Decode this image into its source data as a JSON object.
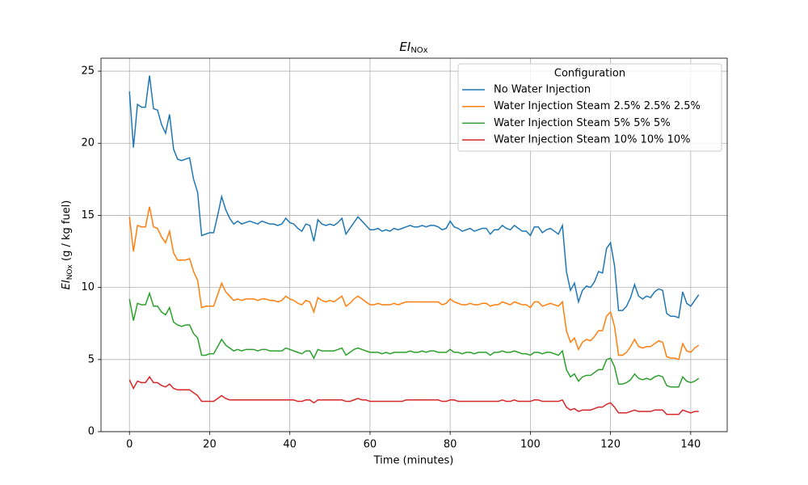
{
  "chart_data": {
    "type": "line",
    "title": {
      "main": "EI",
      "sub": "NOx"
    },
    "xlabel": "Time (minutes)",
    "ylabel": {
      "main": "EI",
      "sub": "NOx",
      "rest": " (g / kg fuel)"
    },
    "legend_title": "Configuration",
    "legend": "upper right",
    "grid": true,
    "xlim": [
      -7.1,
      149.1
    ],
    "ylim": [
      0,
      25.9
    ],
    "xticks": [
      0,
      20,
      40,
      60,
      80,
      100,
      120,
      140
    ],
    "yticks": [
      0,
      5,
      10,
      15,
      20,
      25
    ],
    "x": [
      0,
      1,
      2,
      3,
      4,
      5,
      6,
      7,
      8,
      9,
      10,
      11,
      12,
      13,
      14,
      15,
      16,
      17,
      18,
      19,
      20,
      21,
      22,
      23,
      24,
      25,
      26,
      27,
      28,
      29,
      30,
      31,
      32,
      33,
      34,
      35,
      36,
      37,
      38,
      39,
      40,
      41,
      42,
      43,
      44,
      45,
      46,
      47,
      48,
      49,
      50,
      51,
      52,
      53,
      54,
      55,
      56,
      57,
      58,
      59,
      60,
      61,
      62,
      63,
      64,
      65,
      66,
      67,
      68,
      69,
      70,
      71,
      72,
      73,
      74,
      75,
      76,
      77,
      78,
      79,
      80,
      81,
      82,
      83,
      84,
      85,
      86,
      87,
      88,
      89,
      90,
      91,
      92,
      93,
      94,
      95,
      96,
      97,
      98,
      99,
      100,
      101,
      102,
      103,
      104,
      105,
      106,
      107,
      108,
      109,
      110,
      111,
      112,
      113,
      114,
      115,
      116,
      117,
      118,
      119,
      120,
      121,
      122,
      123,
      124,
      125,
      126,
      127,
      128,
      129,
      130,
      131,
      132,
      133,
      134,
      135,
      136,
      137,
      138,
      139,
      140,
      141,
      142
    ],
    "series": [
      {
        "name": "No Water Injection",
        "color": "#1f77b4",
        "values": [
          23.6,
          19.7,
          22.7,
          22.5,
          22.5,
          24.7,
          22.4,
          22.3,
          21.3,
          20.7,
          22.0,
          19.6,
          18.9,
          18.8,
          18.9,
          19.0,
          17.5,
          16.6,
          13.6,
          13.7,
          13.8,
          13.8,
          15.0,
          16.3,
          15.4,
          14.8,
          14.4,
          14.6,
          14.4,
          14.5,
          14.6,
          14.5,
          14.4,
          14.6,
          14.5,
          14.4,
          14.4,
          14.3,
          14.4,
          14.8,
          14.5,
          14.4,
          14.1,
          13.9,
          14.4,
          14.3,
          13.2,
          14.7,
          14.4,
          14.3,
          14.4,
          14.3,
          14.5,
          14.8,
          13.7,
          14.1,
          14.5,
          14.9,
          14.6,
          14.3,
          14.0,
          14.0,
          14.1,
          13.9,
          14.0,
          13.9,
          14.1,
          14.0,
          14.1,
          14.2,
          14.3,
          14.2,
          14.2,
          14.3,
          14.2,
          14.3,
          14.3,
          14.2,
          14.0,
          14.1,
          14.6,
          14.2,
          14.1,
          13.9,
          14.0,
          14.1,
          13.9,
          14.0,
          14.1,
          14.1,
          13.7,
          14.0,
          14.0,
          14.3,
          14.1,
          14.0,
          14.3,
          14.1,
          13.9,
          13.9,
          13.6,
          14.2,
          14.2,
          13.8,
          14.0,
          14.1,
          13.9,
          13.7,
          14.3,
          11.1,
          9.8,
          10.3,
          9.0,
          9.8,
          10.1,
          10.0,
          10.4,
          11.1,
          11.0,
          12.7,
          13.1,
          11.5,
          8.4,
          8.4,
          8.7,
          9.3,
          10.2,
          9.4,
          9.2,
          9.4,
          9.3,
          9.7,
          9.9,
          9.8,
          8.2,
          8.0,
          8.0,
          7.9,
          9.7,
          8.9,
          8.7,
          9.1,
          9.5
        ]
      },
      {
        "name": "Water Injection Steam 2.5% 2.5% 2.5%",
        "color": "#ff7f0e",
        "values": [
          14.9,
          12.5,
          14.3,
          14.2,
          14.2,
          15.6,
          14.2,
          14.1,
          13.5,
          13.1,
          13.9,
          12.4,
          11.9,
          11.9,
          11.9,
          12.0,
          11.1,
          10.5,
          8.6,
          8.7,
          8.7,
          8.7,
          9.5,
          10.3,
          9.7,
          9.4,
          9.1,
          9.2,
          9.1,
          9.2,
          9.2,
          9.2,
          9.1,
          9.2,
          9.2,
          9.1,
          9.1,
          9.0,
          9.1,
          9.4,
          9.2,
          9.1,
          8.9,
          8.8,
          9.1,
          9.0,
          8.3,
          9.3,
          9.1,
          9.0,
          9.1,
          9.0,
          9.2,
          9.4,
          8.7,
          8.9,
          9.2,
          9.4,
          9.2,
          9.0,
          8.8,
          8.8,
          8.9,
          8.8,
          8.8,
          8.8,
          8.9,
          8.8,
          8.9,
          9.0,
          9.0,
          9.0,
          9.0,
          9.0,
          9.0,
          9.0,
          9.0,
          9.0,
          8.8,
          8.9,
          9.2,
          9.0,
          8.9,
          8.8,
          8.8,
          8.9,
          8.8,
          8.8,
          8.9,
          8.9,
          8.7,
          8.8,
          8.8,
          9.0,
          8.9,
          8.8,
          9.0,
          8.9,
          8.8,
          8.8,
          8.6,
          9.0,
          9.0,
          8.7,
          8.8,
          8.9,
          8.8,
          8.7,
          9.0,
          7.0,
          6.2,
          6.5,
          5.7,
          6.2,
          6.4,
          6.3,
          6.6,
          7.0,
          7.0,
          8.0,
          8.3,
          7.3,
          5.3,
          5.3,
          5.5,
          5.9,
          6.4,
          5.9,
          5.8,
          5.9,
          5.9,
          6.1,
          6.3,
          6.2,
          5.2,
          5.1,
          5.1,
          5.0,
          6.1,
          5.6,
          5.5,
          5.8,
          6.0
        ]
      },
      {
        "name": "Water Injection Steam 5% 5% 5%",
        "color": "#2ca02c",
        "values": [
          9.2,
          7.7,
          8.9,
          8.8,
          8.8,
          9.6,
          8.7,
          8.7,
          8.3,
          8.1,
          8.6,
          7.6,
          7.4,
          7.3,
          7.4,
          7.4,
          6.8,
          6.5,
          5.3,
          5.3,
          5.4,
          5.4,
          5.9,
          6.4,
          6.0,
          5.8,
          5.6,
          5.7,
          5.6,
          5.7,
          5.7,
          5.7,
          5.6,
          5.7,
          5.7,
          5.6,
          5.6,
          5.6,
          5.6,
          5.8,
          5.7,
          5.6,
          5.5,
          5.4,
          5.6,
          5.6,
          5.1,
          5.7,
          5.6,
          5.6,
          5.6,
          5.6,
          5.7,
          5.8,
          5.3,
          5.5,
          5.7,
          5.8,
          5.7,
          5.6,
          5.5,
          5.5,
          5.5,
          5.4,
          5.5,
          5.4,
          5.5,
          5.5,
          5.5,
          5.5,
          5.6,
          5.5,
          5.5,
          5.6,
          5.5,
          5.6,
          5.6,
          5.5,
          5.5,
          5.5,
          5.7,
          5.5,
          5.5,
          5.4,
          5.5,
          5.5,
          5.4,
          5.5,
          5.5,
          5.5,
          5.3,
          5.5,
          5.5,
          5.6,
          5.5,
          5.5,
          5.6,
          5.5,
          5.4,
          5.4,
          5.3,
          5.5,
          5.5,
          5.4,
          5.5,
          5.5,
          5.4,
          5.3,
          5.6,
          4.3,
          3.8,
          4.0,
          3.5,
          3.8,
          3.9,
          3.9,
          4.1,
          4.3,
          4.3,
          5.0,
          5.1,
          4.5,
          3.3,
          3.3,
          3.4,
          3.6,
          4.0,
          3.7,
          3.6,
          3.7,
          3.6,
          3.8,
          3.9,
          3.8,
          3.2,
          3.1,
          3.1,
          3.1,
          3.8,
          3.5,
          3.4,
          3.5,
          3.7
        ]
      },
      {
        "name": "Water Injection Steam 10% 10% 10%",
        "color": "#d62728",
        "values": [
          3.6,
          3.0,
          3.5,
          3.4,
          3.4,
          3.8,
          3.4,
          3.4,
          3.2,
          3.1,
          3.3,
          3.0,
          2.9,
          2.9,
          2.9,
          2.9,
          2.7,
          2.5,
          2.1,
          2.1,
          2.1,
          2.1,
          2.3,
          2.5,
          2.3,
          2.2,
          2.2,
          2.2,
          2.2,
          2.2,
          2.2,
          2.2,
          2.2,
          2.2,
          2.2,
          2.2,
          2.2,
          2.2,
          2.2,
          2.2,
          2.2,
          2.2,
          2.1,
          2.1,
          2.2,
          2.2,
          2.0,
          2.2,
          2.2,
          2.2,
          2.2,
          2.2,
          2.2,
          2.2,
          2.1,
          2.1,
          2.2,
          2.3,
          2.2,
          2.2,
          2.1,
          2.1,
          2.1,
          2.1,
          2.1,
          2.1,
          2.1,
          2.1,
          2.1,
          2.2,
          2.2,
          2.2,
          2.2,
          2.2,
          2.2,
          2.2,
          2.2,
          2.2,
          2.1,
          2.1,
          2.2,
          2.2,
          2.1,
          2.1,
          2.1,
          2.1,
          2.1,
          2.1,
          2.1,
          2.1,
          2.1,
          2.1,
          2.1,
          2.2,
          2.1,
          2.1,
          2.2,
          2.1,
          2.1,
          2.1,
          2.1,
          2.2,
          2.2,
          2.1,
          2.1,
          2.1,
          2.1,
          2.1,
          2.2,
          1.7,
          1.5,
          1.6,
          1.4,
          1.5,
          1.5,
          1.5,
          1.6,
          1.7,
          1.7,
          1.9,
          2.0,
          1.7,
          1.3,
          1.3,
          1.3,
          1.4,
          1.5,
          1.4,
          1.4,
          1.4,
          1.4,
          1.5,
          1.5,
          1.5,
          1.2,
          1.2,
          1.2,
          1.2,
          1.5,
          1.4,
          1.3,
          1.4,
          1.4
        ]
      }
    ]
  }
}
